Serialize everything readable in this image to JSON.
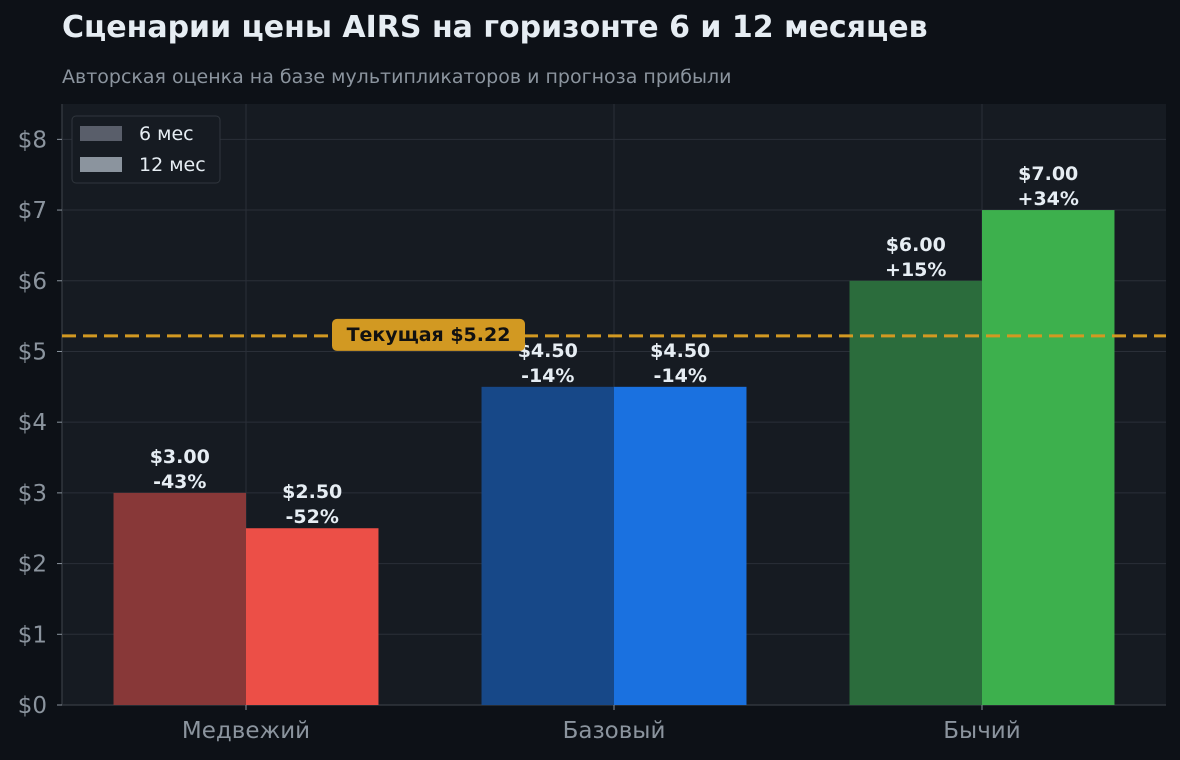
{
  "title": "Сценарии цены AIRS на горизонте 6 и 12 месяцев",
  "subtitle": "Авторская оценка на базе мультипликаторов и прогноза прибыли",
  "chart_data": {
    "type": "bar",
    "categories": [
      "Медвежий",
      "Базовый",
      "Бычий"
    ],
    "series": [
      {
        "name": "6 мес",
        "values": [
          3.0,
          4.5,
          6.0
        ],
        "labels": [
          "$3.00",
          "$4.50",
          "$6.00"
        ],
        "changes": [
          "-43%",
          "-14%",
          "+15%"
        ],
        "colors": [
          "#883838",
          "#174888",
          "#2b6c3c"
        ]
      },
      {
        "name": "12 мес",
        "values": [
          2.5,
          4.5,
          7.0
        ],
        "labels": [
          "$2.50",
          "$4.50",
          "$7.00"
        ],
        "changes": [
          "-52%",
          "-14%",
          "+34%"
        ],
        "colors": [
          "#ec4f47",
          "#1a71e0",
          "#3db04d"
        ]
      }
    ],
    "ylim": [
      0,
      8.5
    ],
    "yticks": [
      0,
      1,
      2,
      3,
      4,
      5,
      6,
      7,
      8
    ],
    "ytick_labels": [
      "$0",
      "$1",
      "$2",
      "$3",
      "$4",
      "$5",
      "$6",
      "$7",
      "$8"
    ],
    "grid": true,
    "legend": {
      "placement": "top-left",
      "entries": [
        {
          "label": "6 мес",
          "color": "#595e6a"
        },
        {
          "label": "12 мес",
          "color": "#8b949e"
        }
      ]
    },
    "reference_line": {
      "value": 5.22,
      "label": "Текущая $5.22",
      "color": "#d29922"
    },
    "colors": {
      "background": "#0d1117",
      "plot_background": "#161b22",
      "grid": "#2a2f38",
      "axis": "#30363d",
      "text": "#e6edf3",
      "muted": "#8b949e"
    }
  }
}
